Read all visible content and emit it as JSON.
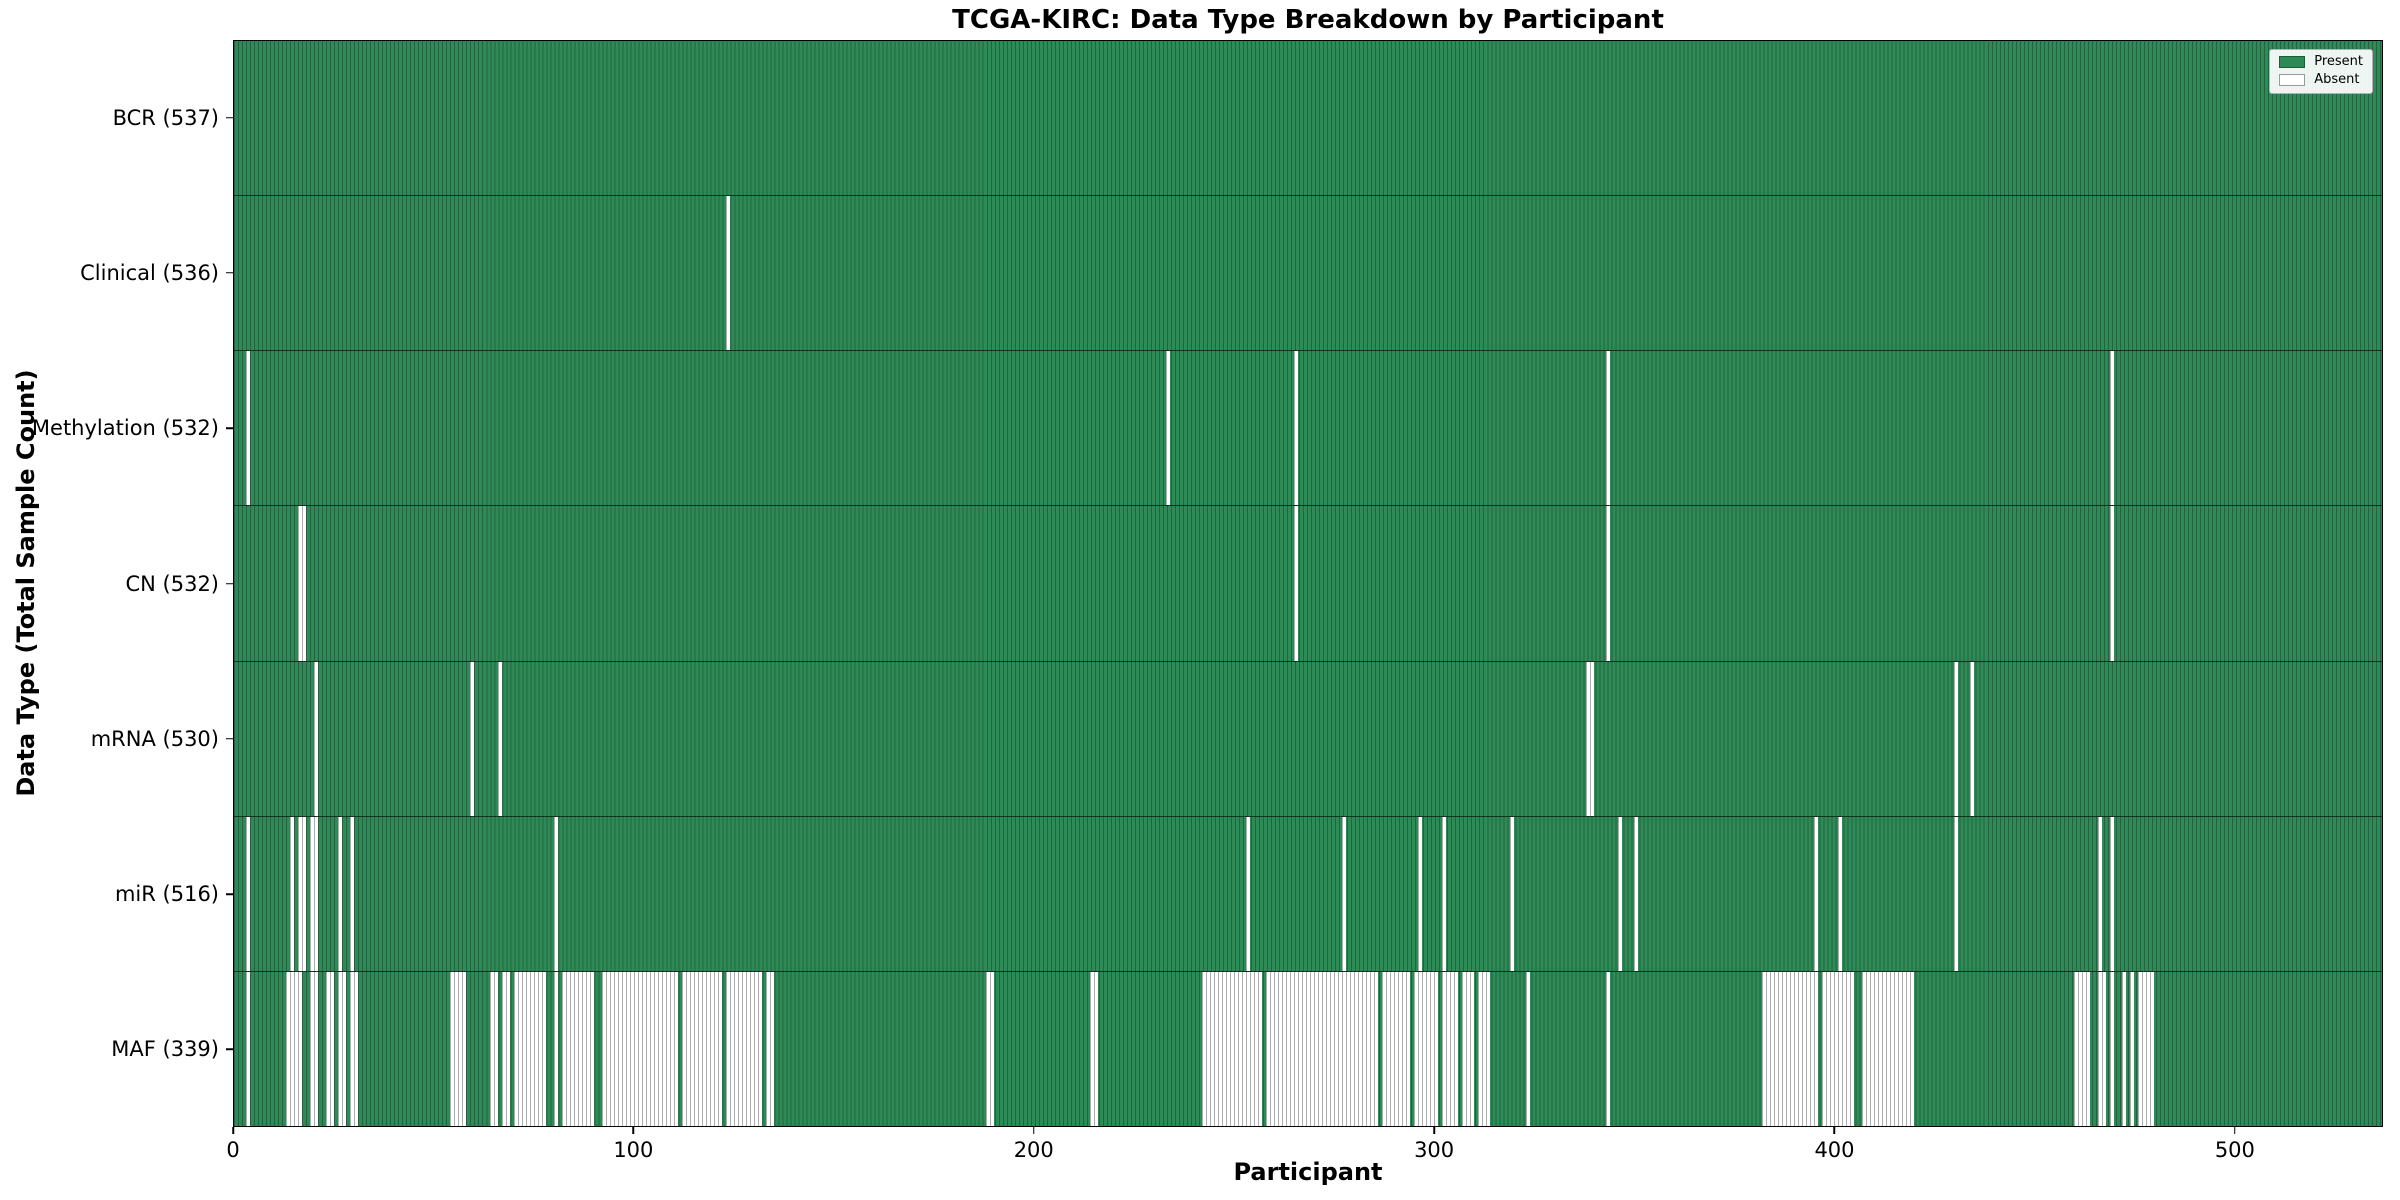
{
  "colors": {
    "present": "#2e8b57",
    "absent": "#ffffff",
    "row_divider": "#2a2a2a",
    "legend_border": "#b3b3b3"
  },
  "chart_data": {
    "type": "heatmap",
    "title": "TCGA-KIRC: Data Type Breakdown by Participant",
    "xlabel": "Participant",
    "ylabel": "Data Type (Total Sample Count)",
    "legend_position": "upper right",
    "grid": false,
    "n_participants": 537,
    "x_range": [
      0,
      537
    ],
    "x_ticks": [
      0,
      100,
      200,
      300,
      400,
      500
    ],
    "legend": [
      {
        "label": "Present",
        "color": "#2e8b57"
      },
      {
        "label": "Absent",
        "color": "#ffffff"
      }
    ],
    "rows": [
      {
        "data_type": "BCR",
        "label": "BCR (537)",
        "present_count": 537,
        "absent_count": 0,
        "absent_ranges": []
      },
      {
        "data_type": "Clinical",
        "label": "Clinical (536)",
        "present_count": 536,
        "absent_count": 1,
        "absent_ranges": [
          [
            123,
            123
          ]
        ]
      },
      {
        "data_type": "Methylation",
        "label": "Methylation (532)",
        "present_count": 532,
        "absent_count": 5,
        "absent_ranges": [
          [
            3,
            3
          ],
          [
            233,
            233
          ],
          [
            265,
            265
          ],
          [
            343,
            343
          ],
          [
            469,
            469
          ]
        ]
      },
      {
        "data_type": "CN",
        "label": "CN (532)",
        "present_count": 532,
        "absent_count": 5,
        "absent_ranges": [
          [
            16,
            17
          ],
          [
            265,
            265
          ],
          [
            343,
            343
          ],
          [
            469,
            469
          ]
        ]
      },
      {
        "data_type": "mRNA",
        "label": "mRNA (530)",
        "present_count": 530,
        "absent_count": 7,
        "absent_ranges": [
          [
            20,
            20
          ],
          [
            59,
            59
          ],
          [
            66,
            66
          ],
          [
            338,
            339
          ],
          [
            430,
            430
          ],
          [
            434,
            434
          ]
        ]
      },
      {
        "data_type": "miR",
        "label": "miR (516)",
        "present_count": 516,
        "absent_count": 21,
        "absent_ranges": [
          [
            3,
            3
          ],
          [
            14,
            14
          ],
          [
            16,
            17
          ],
          [
            19,
            20
          ],
          [
            26,
            26
          ],
          [
            29,
            29
          ],
          [
            80,
            80
          ],
          [
            253,
            253
          ],
          [
            277,
            277
          ],
          [
            296,
            296
          ],
          [
            302,
            302
          ],
          [
            319,
            319
          ],
          [
            346,
            346
          ],
          [
            350,
            350
          ],
          [
            395,
            395
          ],
          [
            401,
            401
          ],
          [
            430,
            430
          ],
          [
            466,
            466
          ],
          [
            469,
            469
          ]
        ]
      },
      {
        "data_type": "MAF",
        "label": "MAF (339)",
        "present_count": 339,
        "absent_count": 198,
        "absent_ranges": [
          [
            3,
            3
          ],
          [
            13,
            16
          ],
          [
            19,
            20
          ],
          [
            23,
            24
          ],
          [
            26,
            27
          ],
          [
            29,
            30
          ],
          [
            54,
            57
          ],
          [
            64,
            65
          ],
          [
            67,
            68
          ],
          [
            70,
            77
          ],
          [
            80,
            80
          ],
          [
            82,
            89
          ],
          [
            92,
            110
          ],
          [
            112,
            121
          ],
          [
            123,
            131
          ],
          [
            133,
            134
          ],
          [
            188,
            189
          ],
          [
            214,
            215
          ],
          [
            242,
            256
          ],
          [
            258,
            285
          ],
          [
            287,
            293
          ],
          [
            295,
            300
          ],
          [
            302,
            305
          ],
          [
            307,
            309
          ],
          [
            311,
            313
          ],
          [
            323,
            323
          ],
          [
            343,
            343
          ],
          [
            382,
            395
          ],
          [
            397,
            404
          ],
          [
            407,
            419
          ],
          [
            460,
            463
          ],
          [
            466,
            467
          ],
          [
            469,
            469
          ],
          [
            472,
            472
          ],
          [
            474,
            474
          ],
          [
            476,
            479
          ]
        ]
      }
    ]
  }
}
